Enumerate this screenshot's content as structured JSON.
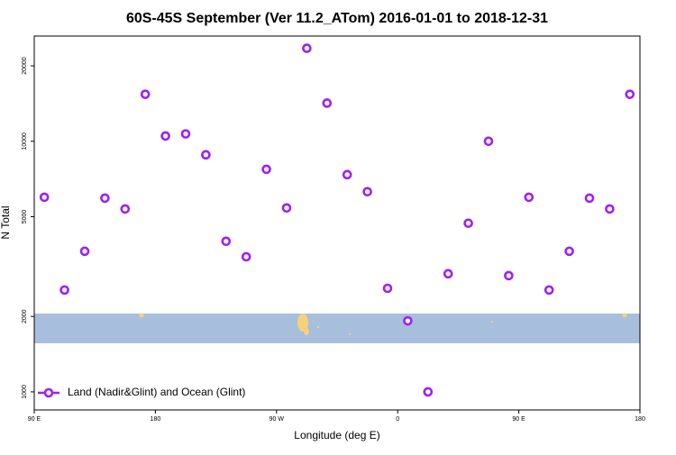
{
  "chart_data": {
    "type": "scatter",
    "title": "60S-45S September (Ver 11.2_ATom)   2016-01-01 to 2018-12-31",
    "x_label": "Longitude (deg E)",
    "y_label": "N Total",
    "series": [
      {
        "name": "Land (Nadir&Glint) and Ocean (Glint)",
        "color": "#a020f0",
        "x": [
          97.5,
          112.5,
          127.5,
          142.5,
          157.5,
          172.5,
          187.5,
          202.5,
          217.5,
          232.5,
          247.5,
          262.5,
          277.5,
          292.5,
          307.5,
          322.5,
          337.5,
          352.5,
          367.5,
          382.5,
          397.5,
          412.5,
          427.5,
          442.5,
          457.5,
          472.5,
          487.5,
          502.5,
          517.5,
          532.5
        ],
        "values": [
          5980,
          2550,
          3640,
          5930,
          5370,
          15400,
          10500,
          10700,
          8830,
          3990,
          3460,
          7730,
          5420,
          23500,
          14200,
          7360,
          6290,
          2590,
          1920,
          1000,
          2960,
          4710,
          10000,
          2910,
          5980,
          2550,
          3640,
          5930,
          5370,
          15400
        ]
      }
    ],
    "xlim": [
      90,
      540
    ],
    "xticks": [
      {
        "value": 90,
        "label": "90 E"
      },
      {
        "value": 180,
        "label": "180"
      },
      {
        "value": 270,
        "label": "90 W"
      },
      {
        "value": 360,
        "label": "0"
      },
      {
        "value": 450,
        "label": "90 E"
      },
      {
        "value": 540,
        "label": "180"
      }
    ],
    "ylim": [
      847,
      26300
    ],
    "yticks": [
      1000,
      2000,
      5000,
      10000,
      20000
    ],
    "log_y": true,
    "legend": "lower left"
  }
}
